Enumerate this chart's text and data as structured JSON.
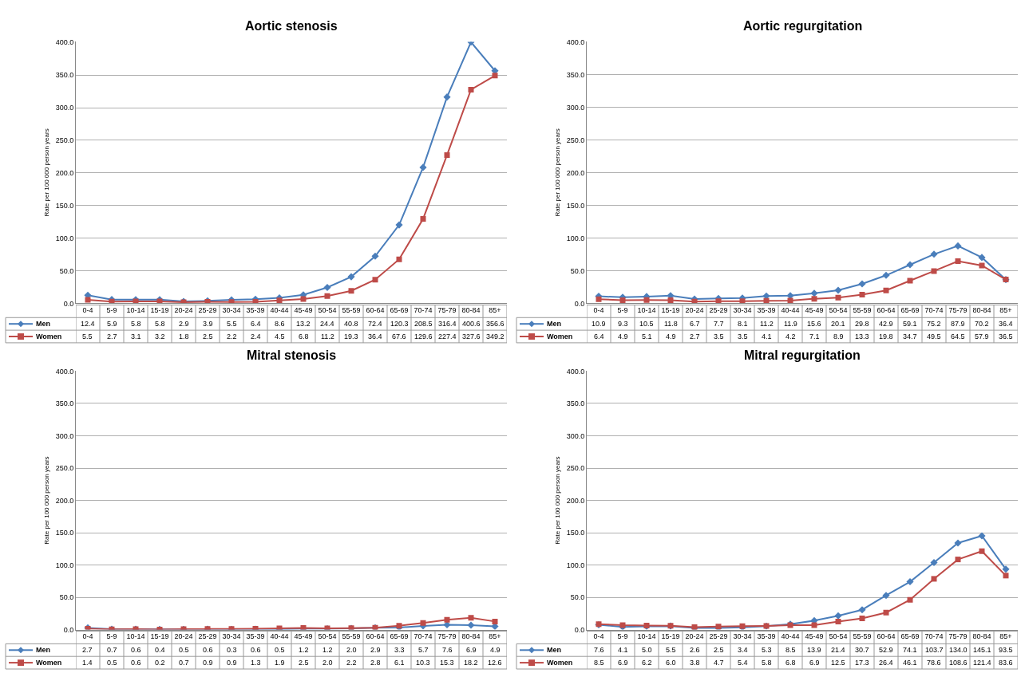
{
  "chart_data": [
    {
      "type": "line",
      "title": "Aortic stenosis",
      "ylabel": "Rate per 100 000 person years",
      "legend": "bottom left",
      "categories": [
        "0-4",
        "5-9",
        "10-14",
        "15-19",
        "20-24",
        "25-29",
        "30-34",
        "35-39",
        "40-44",
        "45-49",
        "50-54",
        "55-59",
        "60-64",
        "65-69",
        "70-74",
        "75-79",
        "80-84",
        "85+"
      ],
      "ylim": [
        0,
        401
      ],
      "yticks": [
        {
          "value": 0,
          "label": "0.0"
        },
        {
          "value": 50,
          "label": "50.0"
        },
        {
          "value": 100,
          "label": "100.0"
        },
        {
          "value": 150,
          "label": "150.0"
        },
        {
          "value": 200,
          "label": "200.0"
        },
        {
          "value": 250,
          "label": "250.0"
        },
        {
          "value": 300,
          "label": "300.0"
        },
        {
          "value": 350,
          "label": "350.0"
        },
        {
          "value": 400,
          "label": "400.0"
        }
      ],
      "grid": "y",
      "series": [
        {
          "name": "Men",
          "color": "#4a7ebb",
          "marker": "diamond",
          "values": [
            12.4,
            5.9,
            5.8,
            5.8,
            2.9,
            3.9,
            5.5,
            6.4,
            8.6,
            13.2,
            24.4,
            40.8,
            72.4,
            120.3,
            208.5,
            316.4,
            400.6,
            356.6
          ],
          "value_labels": [
            "12.4",
            "5.9",
            "5.8",
            "5.8",
            "2.9",
            "3.9",
            "5.5",
            "6.4",
            "8.6",
            "13.2",
            "24.4",
            "40.8",
            "72.4",
            "120.3",
            "208.5",
            "316.4",
            "400.6",
            "356.6"
          ]
        },
        {
          "name": "Women",
          "color": "#be4b48",
          "marker": "square",
          "values": [
            5.5,
            2.7,
            3.1,
            3.2,
            1.8,
            2.5,
            2.2,
            2.4,
            4.5,
            6.8,
            11.2,
            19.3,
            36.4,
            67.6,
            129.6,
            227.4,
            327.6,
            349.2
          ],
          "value_labels": [
            "5.5",
            "2.7",
            "3.1",
            "3.2",
            "1.8",
            "2.5",
            "2.2",
            "2.4",
            "4.5",
            "6.8",
            "11.2",
            "19.3",
            "36.4",
            "67.6",
            "129.6",
            "227.4",
            "327.6",
            "349.2"
          ]
        }
      ]
    },
    {
      "type": "line",
      "title": "Aortic regurgitation",
      "ylabel": "Rate per 100 000 person years",
      "legend": "bottom left",
      "categories": [
        "0-4",
        "5-9",
        "10-14",
        "15-19",
        "20-24",
        "25-29",
        "30-34",
        "35-39",
        "40-44",
        "45-49",
        "50-54",
        "55-59",
        "60-64",
        "65-69",
        "70-74",
        "75-79",
        "80-84",
        "85+"
      ],
      "ylim": [
        0,
        400
      ],
      "yticks": [
        {
          "value": 0,
          "label": "0.0"
        },
        {
          "value": 50,
          "label": "50.0"
        },
        {
          "value": 100,
          "label": "100.0"
        },
        {
          "value": 150,
          "label": "150.0"
        },
        {
          "value": 200,
          "label": "200.0"
        },
        {
          "value": 250,
          "label": "250.0"
        },
        {
          "value": 300,
          "label": "300.0"
        },
        {
          "value": 350,
          "label": "350.0"
        },
        {
          "value": 400,
          "label": "400.0"
        }
      ],
      "grid": "y",
      "series": [
        {
          "name": "Men",
          "color": "#4a7ebb",
          "marker": "diamond",
          "values": [
            10.9,
            9.3,
            10.5,
            11.8,
            6.7,
            7.7,
            8.1,
            11.2,
            11.9,
            15.6,
            20.1,
            29.8,
            42.9,
            59.1,
            75.2,
            87.9,
            70.2,
            36.4
          ],
          "value_labels": [
            "10.9",
            "9.3",
            "10.5",
            "11.8",
            "6.7",
            "7.7",
            "8.1",
            "11.2",
            "11.9",
            "15.6",
            "20.1",
            "29.8",
            "42.9",
            "59.1",
            "75.2",
            "87.9",
            "70.2",
            "36.4"
          ]
        },
        {
          "name": "Women",
          "color": "#be4b48",
          "marker": "square",
          "values": [
            6.4,
            4.9,
            5.1,
            4.9,
            2.7,
            3.5,
            3.5,
            4.1,
            4.2,
            7.1,
            8.9,
            13.3,
            19.8,
            34.7,
            49.5,
            64.5,
            57.9,
            36.5
          ],
          "value_labels": [
            "6.4",
            "4.9",
            "5.1",
            "4.9",
            "2.7",
            "3.5",
            "3.5",
            "4.1",
            "4.2",
            "7.1",
            "8.9",
            "13.3",
            "19.8",
            "34.7",
            "49.5",
            "64.5",
            "57.9",
            "36.5"
          ]
        }
      ]
    },
    {
      "type": "line",
      "title": "Mitral stenosis",
      "ylabel": "Rate per 100 000 person years",
      "legend": "bottom left",
      "categories": [
        "0-4",
        "5-9",
        "10-14",
        "15-19",
        "20-24",
        "25-29",
        "30-34",
        "35-39",
        "40-44",
        "45-49",
        "50-54",
        "55-59",
        "60-64",
        "65-69",
        "70-74",
        "75-79",
        "80-84",
        "85+"
      ],
      "ylim": [
        0,
        400
      ],
      "yticks": [
        {
          "value": 0,
          "label": "0.0"
        },
        {
          "value": 50,
          "label": "50.0"
        },
        {
          "value": 100,
          "label": "100.0"
        },
        {
          "value": 150,
          "label": "150.0"
        },
        {
          "value": 200,
          "label": "200.0"
        },
        {
          "value": 250,
          "label": "250.0"
        },
        {
          "value": 300,
          "label": "300.0"
        },
        {
          "value": 350,
          "label": "350.0"
        },
        {
          "value": 400,
          "label": "400.0"
        }
      ],
      "grid": "y",
      "series": [
        {
          "name": "Men",
          "color": "#4a7ebb",
          "marker": "diamond",
          "values": [
            2.7,
            0.7,
            0.6,
            0.4,
            0.5,
            0.6,
            0.3,
            0.6,
            0.5,
            1.2,
            1.2,
            2.0,
            2.9,
            3.3,
            5.7,
            7.6,
            6.9,
            4.9
          ],
          "value_labels": [
            "2.7",
            "0.7",
            "0.6",
            "0.4",
            "0.5",
            "0.6",
            "0.3",
            "0.6",
            "0.5",
            "1.2",
            "1.2",
            "2.0",
            "2.9",
            "3.3",
            "5.7",
            "7.6",
            "6.9",
            "4.9"
          ]
        },
        {
          "name": "Women",
          "color": "#be4b48",
          "marker": "square",
          "values": [
            1.4,
            0.5,
            0.6,
            0.2,
            0.7,
            0.9,
            0.9,
            1.3,
            1.9,
            2.5,
            2.0,
            2.2,
            2.8,
            6.1,
            10.3,
            15.3,
            18.2,
            12.6
          ],
          "value_labels": [
            "1.4",
            "0.5",
            "0.6",
            "0.2",
            "0.7",
            "0.9",
            "0.9",
            "1.3",
            "1.9",
            "2.5",
            "2.0",
            "2.2",
            "2.8",
            "6.1",
            "10.3",
            "15.3",
            "18.2",
            "12.6"
          ]
        }
      ]
    },
    {
      "type": "line",
      "title": "Mitral regurgitation",
      "ylabel": "Rate per 100 000 person years",
      "legend": "bottom left",
      "categories": [
        "0-4",
        "5-9",
        "10-14",
        "15-19",
        "20-24",
        "25-29",
        "30-34",
        "35-39",
        "40-44",
        "45-49",
        "50-54",
        "55-59",
        "60-64",
        "65-69",
        "70-74",
        "75-79",
        "80-84",
        "85+"
      ],
      "ylim": [
        0,
        400
      ],
      "yticks": [
        {
          "value": 0,
          "label": "0.0"
        },
        {
          "value": 50,
          "label": "50.0"
        },
        {
          "value": 100,
          "label": "100.0"
        },
        {
          "value": 150,
          "label": "150.0"
        },
        {
          "value": 200,
          "label": "200.0"
        },
        {
          "value": 250,
          "label": "250.0"
        },
        {
          "value": 300,
          "label": "300.0"
        },
        {
          "value": 350,
          "label": "350.0"
        },
        {
          "value": 400,
          "label": "400.0"
        }
      ],
      "grid": "y",
      "series": [
        {
          "name": "Men",
          "color": "#4a7ebb",
          "marker": "diamond",
          "values": [
            7.6,
            4.1,
            5.0,
            5.5,
            2.6,
            2.5,
            3.4,
            5.3,
            8.5,
            13.9,
            21.4,
            30.7,
            52.9,
            74.1,
            103.7,
            134.0,
            145.1,
            93.5
          ],
          "value_labels": [
            "7.6",
            "4.1",
            "5.0",
            "5.5",
            "2.6",
            "2.5",
            "3.4",
            "5.3",
            "8.5",
            "13.9",
            "21.4",
            "30.7",
            "52.9",
            "74.1",
            "103.7",
            "134.0",
            "145.1",
            "93.5"
          ]
        },
        {
          "name": "Women",
          "color": "#be4b48",
          "marker": "square",
          "values": [
            8.5,
            6.9,
            6.2,
            6.0,
            3.8,
            4.7,
            5.4,
            5.8,
            6.8,
            6.9,
            12.5,
            17.3,
            26.4,
            46.1,
            78.6,
            108.6,
            121.4,
            83.6
          ],
          "value_labels": [
            "8.5",
            "6.9",
            "6.2",
            "6.0",
            "3.8",
            "4.7",
            "5.4",
            "5.8",
            "6.8",
            "6.9",
            "12.5",
            "17.3",
            "26.4",
            "46.1",
            "78.6",
            "108.6",
            "121.4",
            "83.6"
          ]
        }
      ]
    }
  ]
}
